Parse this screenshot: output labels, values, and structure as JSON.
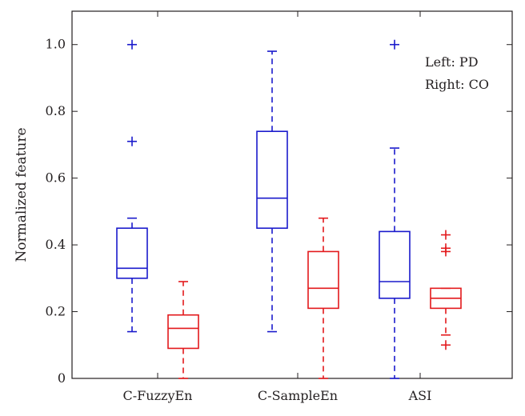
{
  "chart_data": {
    "type": "boxplot",
    "ylabel": "Normalized feature",
    "xlabel": "",
    "title": "",
    "ylim": [
      0,
      1.1
    ],
    "yticks": [
      "0",
      "0.2",
      "0.4",
      "0.6",
      "0.8",
      "1.0"
    ],
    "yticks_values": [
      0,
      0.2,
      0.4,
      0.6,
      0.8,
      1.0
    ],
    "categories": [
      "C-FuzzyEn",
      "C-SampleEn",
      "ASI"
    ],
    "legend": [
      "Left: PD",
      "Right: CO"
    ],
    "grid": false,
    "series": [
      {
        "color": "#1a1acc",
        "boxes": [
          {
            "whisker_low": 0.14,
            "q1": 0.3,
            "median": 0.33,
            "q3": 0.45,
            "whisker_high": 0.48,
            "outliers": [
              0.71,
              1.0
            ]
          },
          {
            "whisker_low": 0.14,
            "q1": 0.45,
            "median": 0.54,
            "q3": 0.74,
            "whisker_high": 0.98,
            "outliers": []
          },
          {
            "whisker_low": 0.0,
            "q1": 0.24,
            "median": 0.29,
            "q3": 0.44,
            "whisker_high": 0.69,
            "outliers": [
              1.0
            ]
          }
        ]
      },
      {
        "color": "#e3191c",
        "boxes": [
          {
            "whisker_low": 0.0,
            "q1": 0.09,
            "median": 0.15,
            "q3": 0.19,
            "whisker_high": 0.29,
            "outliers": []
          },
          {
            "whisker_low": 0.0,
            "q1": 0.21,
            "median": 0.27,
            "q3": 0.38,
            "whisker_high": 0.48,
            "outliers": []
          },
          {
            "whisker_low": 0.13,
            "q1": 0.21,
            "median": 0.24,
            "q3": 0.27,
            "whisker_high": 0.27,
            "outliers": [
              0.1,
              0.38,
              0.39,
              0.43
            ]
          }
        ]
      }
    ]
  }
}
